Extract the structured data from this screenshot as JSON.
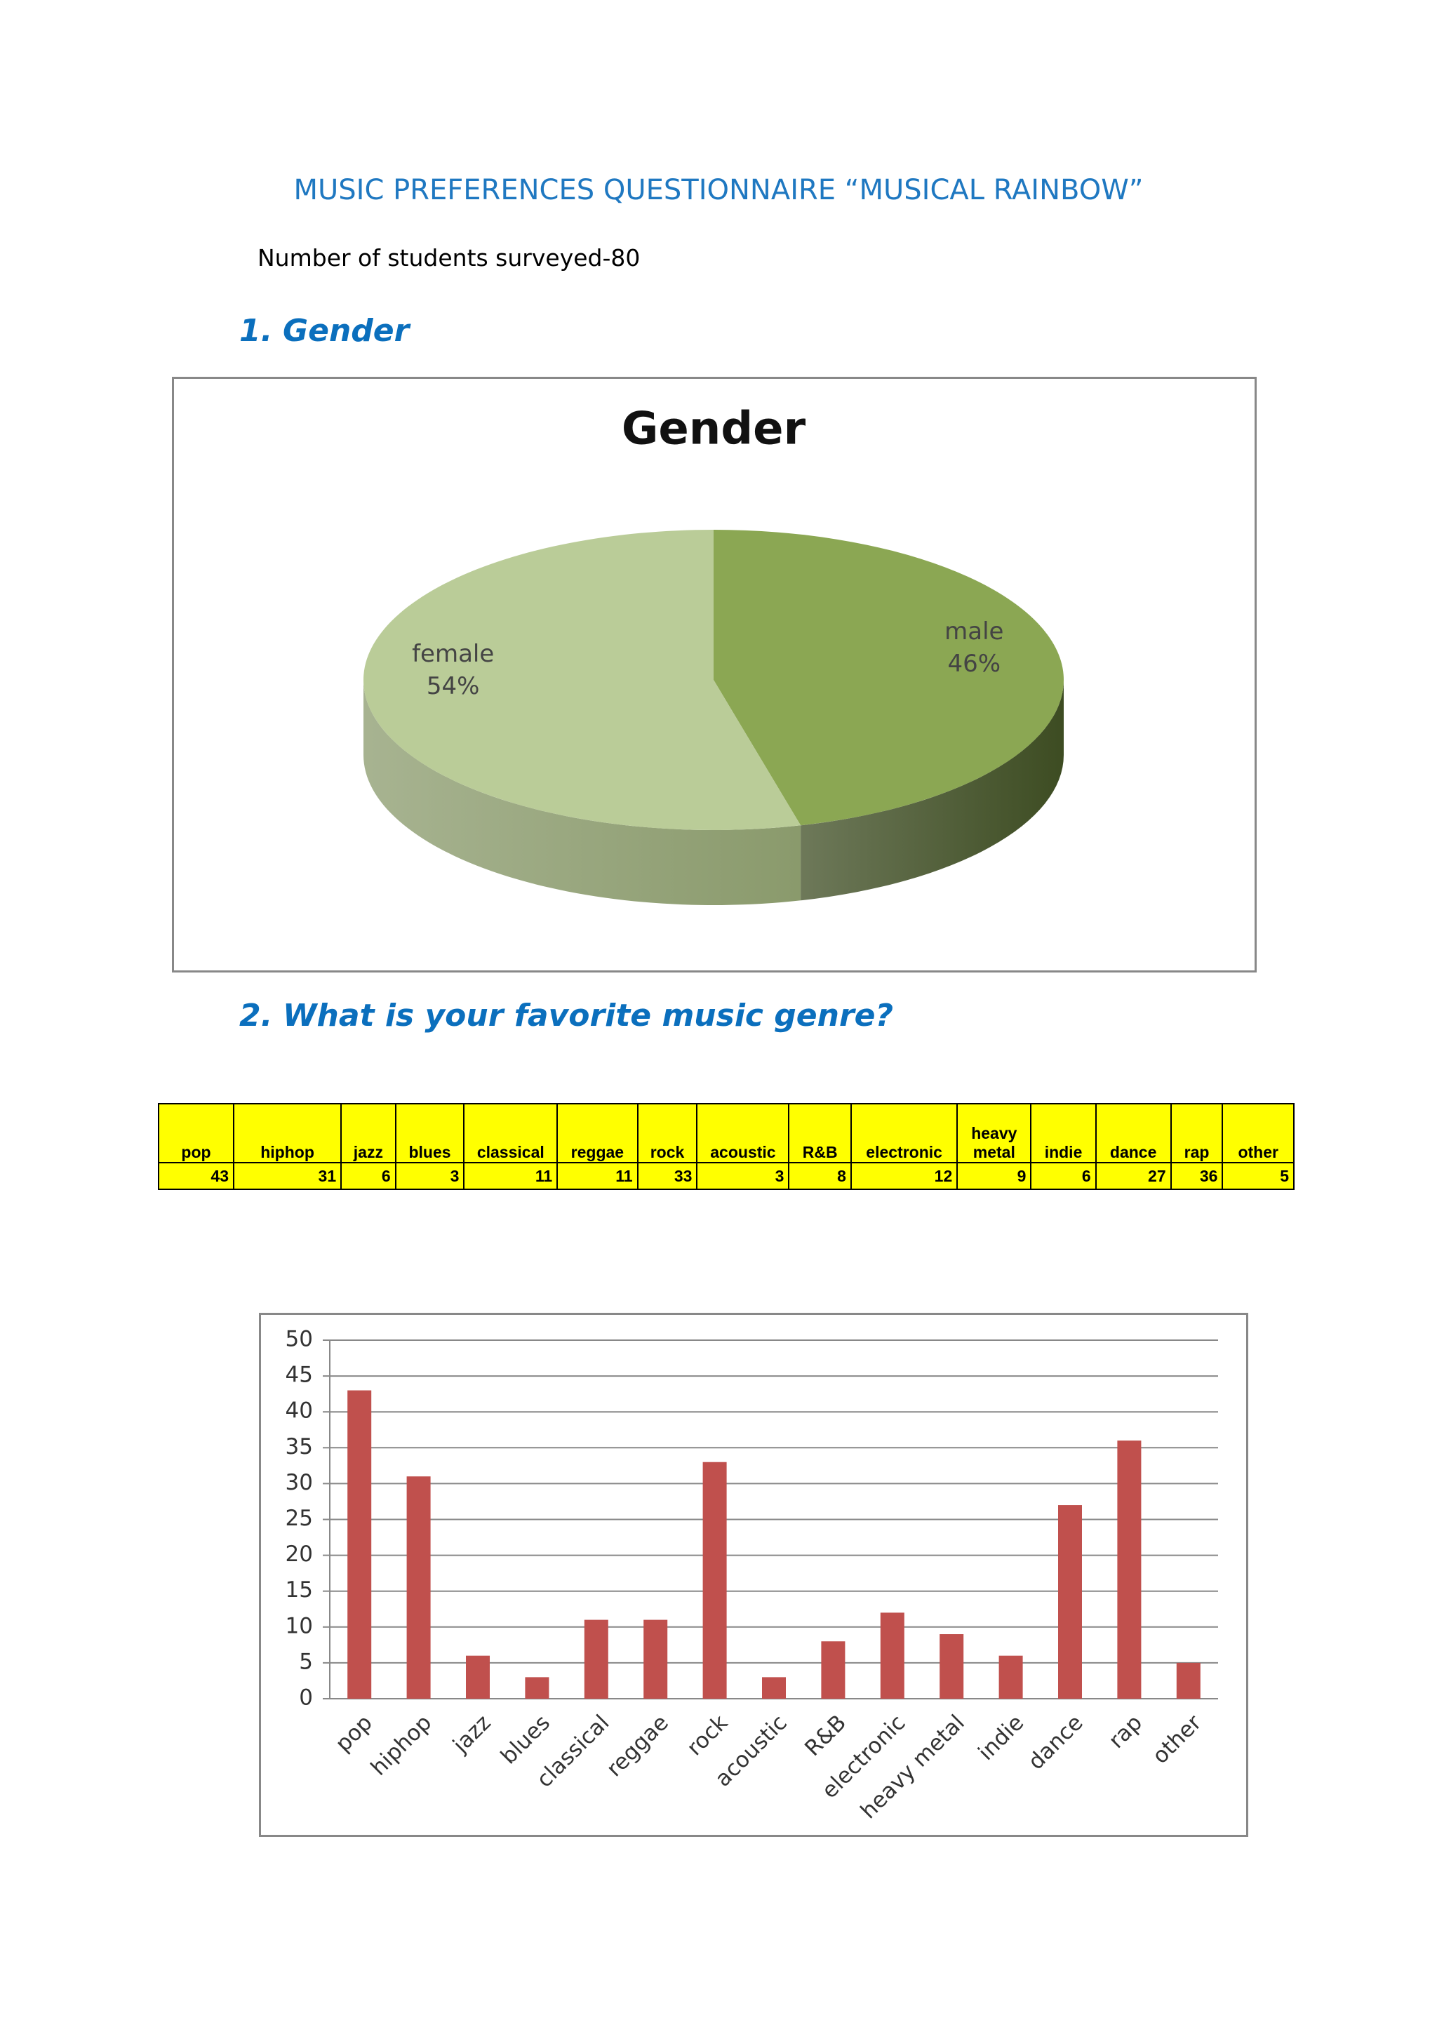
{
  "header": {
    "title": "MUSIC PREFERENCES QUESTIONNAIRE “MUSICAL RAINBOW”",
    "surveyed": "Number of students surveyed-80"
  },
  "sections": [
    {
      "number": "1.",
      "text": "Gender"
    },
    {
      "number": "2.",
      "text": "What is your favorite music genre?"
    }
  ],
  "table": {
    "header": [
      "pop",
      "hiphop",
      "jazz",
      "blues",
      "classical",
      "reggae",
      "rock",
      "acoustic",
      "R&B",
      "electronic",
      "heavy metal",
      "indie",
      "dance",
      "rap",
      "other"
    ],
    "rows": [
      [
        "43",
        "31",
        "6",
        "3",
        "11",
        "11",
        "33",
        "3",
        "8",
        "12",
        "9",
        "6",
        "27",
        "36",
        "5"
      ]
    ]
  },
  "chart_data": [
    {
      "type": "pie",
      "title": "Gender",
      "categories": [
        "male",
        "female"
      ],
      "values": [
        46,
        54
      ],
      "value_labels": [
        "46%",
        "54%"
      ],
      "colors": [
        "#8ba753",
        "#bacc98"
      ],
      "side_colors": [
        "#3d4c22",
        "#8a9a6c"
      ]
    },
    {
      "type": "bar",
      "categories": [
        "pop",
        "hiphop",
        "jazz",
        "blues",
        "classical",
        "reggae",
        "rock",
        "acoustic",
        "R&B",
        "electronic",
        "heavy metal",
        "indie",
        "dance",
        "rap",
        "other"
      ],
      "values": [
        43,
        31,
        6,
        3,
        11,
        11,
        33,
        3,
        8,
        12,
        9,
        6,
        27,
        36,
        5
      ],
      "color": "#c0504d",
      "ylim": [
        0,
        50
      ],
      "yticks": [
        0,
        5,
        10,
        15,
        20,
        25,
        30,
        35,
        40,
        45,
        50
      ],
      "grid": true
    }
  ]
}
